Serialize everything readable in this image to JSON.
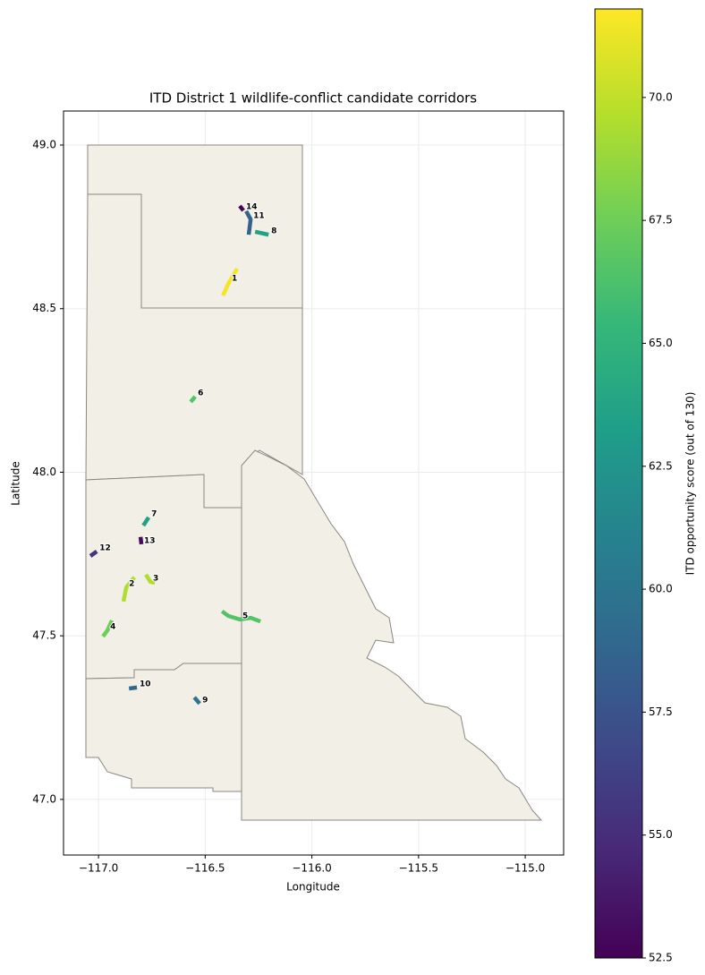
{
  "chart_data": {
    "type": "map",
    "title": "ITD District 1 wildlife-conflict candidate corridors",
    "xlabel": "Longitude",
    "ylabel": "Latitude",
    "xlim": [
      -117.164,
      -114.82
    ],
    "ylim": [
      46.83,
      49.104
    ],
    "xticks": [
      {
        "value": -117,
        "label": "−117.0"
      },
      {
        "value": -116.5,
        "label": "−116.5"
      },
      {
        "value": -116,
        "label": "−116.0"
      },
      {
        "value": -115.5,
        "label": "−115.5"
      },
      {
        "value": -115,
        "label": "−115.0"
      }
    ],
    "yticks": [
      {
        "value": 47,
        "label": "47.0"
      },
      {
        "value": 47.5,
        "label": "47.5"
      },
      {
        "value": 48,
        "label": "48.0"
      },
      {
        "value": 48.5,
        "label": "48.5"
      },
      {
        "value": 49,
        "label": "49.0"
      }
    ],
    "grid": true,
    "colorbar": {
      "label": "ITD opportunity score (out of 130)",
      "lim": [
        52.5,
        71.8
      ],
      "ticks": [
        52.5,
        {
          "value": 55,
          "label": "55.0"
        },
        {
          "value": 57.5,
          "label": "57.5"
        },
        {
          "value": 60,
          "label": "60.0"
        },
        {
          "value": 62.5,
          "label": "62.5"
        },
        {
          "value": 65,
          "label": "65.0"
        },
        {
          "value": 67.5,
          "label": "67.5"
        },
        {
          "value": 70,
          "label": "70.0"
        }
      ],
      "colormap": [
        "#440154",
        "#482878",
        "#3e4989",
        "#31688e",
        "#26828e",
        "#1f9e89",
        "#35b779",
        "#6ece58",
        "#b5de2b",
        "#fde725"
      ]
    },
    "corridors": [
      {
        "name": "1",
        "score": 71.5,
        "lon": [
          -116.417,
          -116.388,
          -116.35
        ],
        "lat": [
          48.54,
          48.581,
          48.622
        ]
      },
      {
        "name": "14",
        "score": 52.8,
        "lon": [
          -116.338,
          -116.321
        ],
        "lat": [
          48.814,
          48.8
        ]
      },
      {
        "name": "11",
        "score": 58.5,
        "lon": [
          -116.308,
          -116.287,
          -116.296
        ],
        "lat": [
          48.798,
          48.773,
          48.726
        ]
      },
      {
        "name": "8",
        "score": 63.5,
        "lon": [
          -116.266,
          -116.203
        ],
        "lat": [
          48.735,
          48.726
        ]
      },
      {
        "name": "6",
        "score": 66.5,
        "lon": [
          -116.568,
          -116.547
        ],
        "lat": [
          48.215,
          48.231
        ]
      },
      {
        "name": "7",
        "score": 63.5,
        "lon": [
          -116.79,
          -116.765
        ],
        "lat": [
          47.837,
          47.862
        ]
      },
      {
        "name": "13",
        "score": 53.0,
        "lon": [
          -116.803,
          -116.799
        ],
        "lat": [
          47.802,
          47.78
        ]
      },
      {
        "name": "12",
        "score": 55.5,
        "lon": [
          -117.038,
          -117.008
        ],
        "lat": [
          47.744,
          47.758
        ]
      },
      {
        "name": "2",
        "score": 69.5,
        "lon": [
          -116.883,
          -116.87,
          -116.832
        ],
        "lat": [
          47.605,
          47.648,
          47.679
        ]
      },
      {
        "name": "3",
        "score": 69.5,
        "lon": [
          -116.778,
          -116.757,
          -116.736
        ],
        "lat": [
          47.687,
          47.665,
          47.662
        ]
      },
      {
        "name": "4",
        "score": 67.5,
        "lon": [
          -116.979,
          -116.958,
          -116.937
        ],
        "lat": [
          47.498,
          47.517,
          47.547
        ]
      },
      {
        "name": "5",
        "score": 66.5,
        "lon": [
          -116.421,
          -116.392,
          -116.338,
          -116.287,
          -116.241
        ],
        "lat": [
          47.575,
          47.561,
          47.55,
          47.555,
          47.544
        ]
      },
      {
        "name": "10",
        "score": 59.0,
        "lon": [
          -116.857,
          -116.82
        ],
        "lat": [
          47.339,
          47.342
        ]
      },
      {
        "name": "9",
        "score": 60.0,
        "lon": [
          -116.551,
          -116.526
        ],
        "lat": [
          47.312,
          47.293
        ]
      }
    ]
  }
}
